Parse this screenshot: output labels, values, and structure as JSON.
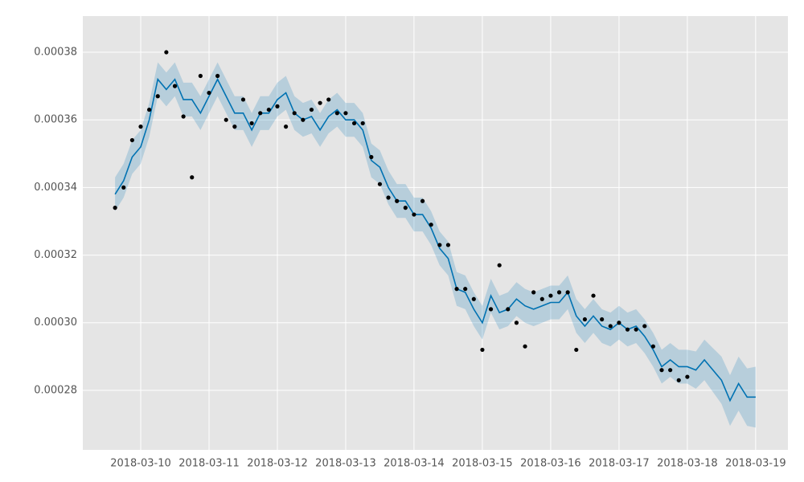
{
  "chart_data": {
    "type": "line",
    "xlim": [
      "2018-03-09 03:40",
      "2018-03-19 11:20"
    ],
    "xticks": [
      "2018-03-10",
      "2018-03-11",
      "2018-03-12",
      "2018-03-13",
      "2018-03-14",
      "2018-03-15",
      "2018-03-16",
      "2018-03-17",
      "2018-03-18",
      "2018-03-19"
    ],
    "ylim": [
      0.0002624,
      0.0003907
    ],
    "yticks": [
      0.00028,
      {
        "value": 0.0003,
        "label": "0.00030"
      },
      0.00032,
      0.00034,
      0.00036,
      0.00038
    ],
    "grid": true,
    "series": [
      {
        "type": "scatter",
        "color": "#000000",
        "x": [
          "2018-03-09 15:00",
          "2018-03-09 18:00",
          "2018-03-09 21:00",
          "2018-03-10 00:00",
          "2018-03-10 03:00",
          "2018-03-10 06:00",
          "2018-03-10 09:00",
          "2018-03-10 12:00",
          "2018-03-10 15:00",
          "2018-03-10 18:00",
          "2018-03-10 21:00",
          "2018-03-11 00:00",
          "2018-03-11 03:00",
          "2018-03-11 06:00",
          "2018-03-11 09:00",
          "2018-03-11 12:00",
          "2018-03-11 15:00",
          "2018-03-11 18:00",
          "2018-03-11 21:00",
          "2018-03-12 00:00",
          "2018-03-12 03:00",
          "2018-03-12 06:00",
          "2018-03-12 09:00",
          "2018-03-12 12:00",
          "2018-03-12 15:00",
          "2018-03-12 18:00",
          "2018-03-12 21:00",
          "2018-03-13 00:00",
          "2018-03-13 03:00",
          "2018-03-13 06:00",
          "2018-03-13 09:00",
          "2018-03-13 12:00",
          "2018-03-13 15:00",
          "2018-03-13 18:00",
          "2018-03-13 21:00",
          "2018-03-14 00:00",
          "2018-03-14 03:00",
          "2018-03-14 06:00",
          "2018-03-14 09:00",
          "2018-03-14 12:00",
          "2018-03-14 15:00",
          "2018-03-14 18:00",
          "2018-03-14 21:00",
          "2018-03-15 00:00",
          "2018-03-15 03:00",
          "2018-03-15 06:00",
          "2018-03-15 09:00",
          "2018-03-15 12:00",
          "2018-03-15 15:00",
          "2018-03-15 18:00",
          "2018-03-15 21:00",
          "2018-03-16 00:00",
          "2018-03-16 03:00",
          "2018-03-16 06:00",
          "2018-03-16 09:00",
          "2018-03-16 12:00",
          "2018-03-16 15:00",
          "2018-03-16 18:00",
          "2018-03-16 21:00",
          "2018-03-17 00:00",
          "2018-03-17 03:00",
          "2018-03-17 06:00",
          "2018-03-17 09:00",
          "2018-03-17 12:00",
          "2018-03-17 15:00",
          "2018-03-17 18:00",
          "2018-03-17 21:00",
          "2018-03-18 00:00"
        ],
        "values": [
          0.000334,
          0.00034,
          0.000354,
          0.000358,
          0.000363,
          0.000367,
          0.00038,
          0.00037,
          0.000361,
          0.000343,
          0.000373,
          0.000368,
          0.000373,
          0.00036,
          0.000358,
          0.000366,
          0.000359,
          0.000362,
          0.000363,
          0.000364,
          0.000358,
          0.000362,
          0.00036,
          0.000363,
          0.000365,
          0.000366,
          0.000362,
          0.000362,
          0.000359,
          0.000359,
          0.000349,
          0.000341,
          0.000337,
          0.000336,
          0.000334,
          0.000332,
          0.000336,
          0.000329,
          0.000323,
          0.000323,
          0.00031,
          0.00031,
          0.000307,
          0.000292,
          0.000304,
          0.000317,
          0.000304,
          0.0003,
          0.000293,
          0.000309,
          0.000307,
          0.000308,
          0.000309,
          0.000309,
          0.000292,
          0.000301,
          0.000308,
          0.000301,
          0.000299,
          0.0003,
          0.000298,
          0.000298,
          0.000299,
          0.000293,
          0.000286,
          0.000286,
          0.000283,
          0.000284
        ]
      },
      {
        "type": "line",
        "color": "#0072B2",
        "x": [
          "2018-03-09 15:00",
          "2018-03-09 18:00",
          "2018-03-09 21:00",
          "2018-03-10 00:00",
          "2018-03-10 03:00",
          "2018-03-10 06:00",
          "2018-03-10 09:00",
          "2018-03-10 12:00",
          "2018-03-10 15:00",
          "2018-03-10 18:00",
          "2018-03-10 21:00",
          "2018-03-11 00:00",
          "2018-03-11 03:00",
          "2018-03-11 06:00",
          "2018-03-11 09:00",
          "2018-03-11 12:00",
          "2018-03-11 15:00",
          "2018-03-11 18:00",
          "2018-03-11 21:00",
          "2018-03-12 00:00",
          "2018-03-12 03:00",
          "2018-03-12 06:00",
          "2018-03-12 09:00",
          "2018-03-12 12:00",
          "2018-03-12 15:00",
          "2018-03-12 18:00",
          "2018-03-12 21:00",
          "2018-03-13 00:00",
          "2018-03-13 03:00",
          "2018-03-13 06:00",
          "2018-03-13 09:00",
          "2018-03-13 12:00",
          "2018-03-13 15:00",
          "2018-03-13 18:00",
          "2018-03-13 21:00",
          "2018-03-14 00:00",
          "2018-03-14 03:00",
          "2018-03-14 06:00",
          "2018-03-14 09:00",
          "2018-03-14 12:00",
          "2018-03-14 15:00",
          "2018-03-14 18:00",
          "2018-03-14 21:00",
          "2018-03-15 00:00",
          "2018-03-15 03:00",
          "2018-03-15 06:00",
          "2018-03-15 09:00",
          "2018-03-15 12:00",
          "2018-03-15 15:00",
          "2018-03-15 18:00",
          "2018-03-15 21:00",
          "2018-03-16 00:00",
          "2018-03-16 03:00",
          "2018-03-16 06:00",
          "2018-03-16 09:00",
          "2018-03-16 12:00",
          "2018-03-16 15:00",
          "2018-03-16 18:00",
          "2018-03-16 21:00",
          "2018-03-17 00:00",
          "2018-03-17 03:00",
          "2018-03-17 06:00",
          "2018-03-17 09:00",
          "2018-03-17 12:00",
          "2018-03-17 15:00",
          "2018-03-17 18:00",
          "2018-03-17 21:00",
          "2018-03-18 00:00",
          "2018-03-18 03:00",
          "2018-03-18 06:00",
          "2018-03-18 09:00",
          "2018-03-18 12:00",
          "2018-03-18 15:00",
          "2018-03-18 18:00",
          "2018-03-18 21:00",
          "2018-03-19 00:00"
        ],
        "values": [
          0.000338,
          0.000342,
          0.000349,
          0.000352,
          0.00036,
          0.000372,
          0.000369,
          0.000372,
          0.000366,
          0.000366,
          0.000362,
          0.000367,
          0.000372,
          0.000367,
          0.000362,
          0.000362,
          0.000357,
          0.000362,
          0.000362,
          0.000366,
          0.000368,
          0.000362,
          0.00036,
          0.000361,
          0.000357,
          0.000361,
          0.000363,
          0.00036,
          0.00036,
          0.000357,
          0.000348,
          0.000346,
          0.00034,
          0.000336,
          0.000336,
          0.000332,
          0.000332,
          0.000328,
          0.000322,
          0.000319,
          0.00031,
          0.000309,
          0.000304,
          0.0003,
          0.000308,
          0.000303,
          0.000304,
          0.000307,
          0.000305,
          0.000304,
          0.000305,
          0.000306,
          0.000306,
          0.000309,
          0.000302,
          0.000299,
          0.000302,
          0.000299,
          0.000298,
          0.0003,
          0.000298,
          0.000299,
          0.000296,
          0.000292,
          0.000287,
          0.000289,
          0.000287,
          0.000287,
          0.000286,
          0.000289,
          0.000286,
          0.000283,
          0.000277,
          0.000282,
          0.000278,
          0.000278
        ],
        "upper": [
          0.000343,
          0.000347,
          0.000354,
          0.000357,
          0.000365,
          0.000377,
          0.000374,
          0.000377,
          0.000371,
          0.000371,
          0.000367,
          0.000372,
          0.000377,
          0.000372,
          0.000367,
          0.000367,
          0.000362,
          0.000367,
          0.000367,
          0.000371,
          0.000373,
          0.000367,
          0.000365,
          0.000366,
          0.000362,
          0.000366,
          0.000368,
          0.000365,
          0.000365,
          0.000362,
          0.000353,
          0.000351,
          0.000345,
          0.000341,
          0.000341,
          0.000337,
          0.000337,
          0.000333,
          0.000327,
          0.000324,
          0.000315,
          0.000314,
          0.000309,
          0.000305,
          0.000313,
          0.000308,
          0.000309,
          0.000312,
          0.00031,
          0.000309,
          0.00031,
          0.000311,
          0.000311,
          0.000314,
          0.000307,
          0.000304,
          0.000307,
          0.000304,
          0.000303,
          0.000305,
          0.000303,
          0.000304,
          0.000301,
          0.000297,
          0.000292,
          0.000294,
          0.000292,
          0.000292,
          0.0002915,
          0.000295,
          0.0002925,
          0.00029,
          0.0002845,
          0.00029,
          0.0002865,
          0.000287
        ],
        "lower": [
          0.000333,
          0.000337,
          0.000344,
          0.000347,
          0.000355,
          0.000367,
          0.000364,
          0.000367,
          0.000361,
          0.000361,
          0.000357,
          0.000362,
          0.000367,
          0.000362,
          0.000357,
          0.000357,
          0.000352,
          0.000357,
          0.000357,
          0.000361,
          0.000363,
          0.000357,
          0.000355,
          0.000356,
          0.000352,
          0.000356,
          0.000358,
          0.000355,
          0.000355,
          0.000352,
          0.000343,
          0.000341,
          0.000335,
          0.000331,
          0.000331,
          0.000327,
          0.000327,
          0.000323,
          0.000317,
          0.000314,
          0.000305,
          0.000304,
          0.000299,
          0.000295,
          0.000303,
          0.000298,
          0.000299,
          0.000302,
          0.0003,
          0.000299,
          0.0003,
          0.000301,
          0.000301,
          0.000304,
          0.000297,
          0.000294,
          0.000297,
          0.000294,
          0.000293,
          0.000295,
          0.000293,
          0.000294,
          0.000291,
          0.000287,
          0.000282,
          0.000284,
          0.000282,
          0.000282,
          0.0002805,
          0.000283,
          0.0002795,
          0.000276,
          0.0002695,
          0.000274,
          0.0002695,
          0.000269
        ]
      }
    ]
  }
}
